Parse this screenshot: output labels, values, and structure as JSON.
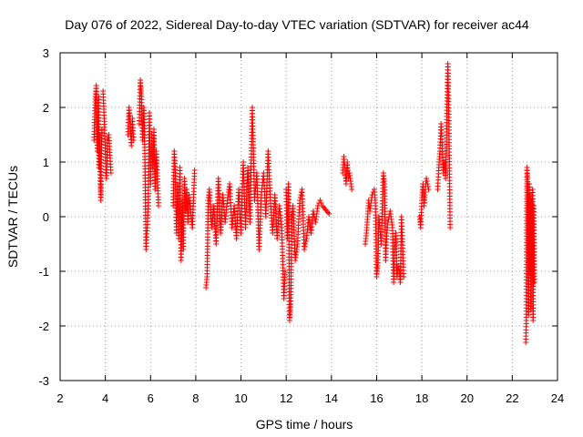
{
  "chart_data": {
    "type": "scatter",
    "title": "Day 076 of 2022, Sidereal Day-to-day VTEC variation (SDTVAR) for receiver ac44",
    "xlabel": "GPS time / hours",
    "ylabel": "SDTVAR / TECUs",
    "xlim": [
      2,
      24
    ],
    "ylim": [
      -3,
      3
    ],
    "xticks": [
      "2",
      "4",
      "6",
      "8",
      "10",
      "12",
      "14",
      "16",
      "18",
      "20",
      "22",
      "24"
    ],
    "yticks": [
      "-3",
      "-2",
      "-1",
      "0",
      "1",
      "2",
      "3"
    ],
    "grid": true,
    "marker": "+",
    "colors": {
      "series": "#ff0000",
      "axes": "#000000",
      "grid": "#a0a0a0"
    },
    "series": [
      {
        "name": "SDTVAR",
        "segments": [
          [
            [
              3.5,
              1.4
            ],
            [
              3.55,
              2.1
            ],
            [
              3.6,
              2.4
            ],
            [
              3.62,
              1.8
            ],
            [
              3.65,
              1.2
            ],
            [
              3.7,
              2.2
            ],
            [
              3.72,
              0.9
            ],
            [
              3.75,
              1.5
            ],
            [
              3.78,
              0.6
            ],
            [
              3.8,
              0.3
            ],
            [
              3.82,
              1.1
            ],
            [
              3.85,
              1.6
            ]
          ],
          [
            [
              3.9,
              2.3
            ],
            [
              3.95,
              1.8
            ],
            [
              4.0,
              1.2
            ],
            [
              4.02,
              0.8
            ],
            [
              4.05,
              0.7
            ],
            [
              4.1,
              1.4
            ],
            [
              4.15,
              1.5
            ],
            [
              4.25,
              0.8
            ]
          ],
          [
            [
              5.0,
              1.5
            ],
            [
              5.05,
              2.0
            ],
            [
              5.1,
              1.7
            ],
            [
              5.15,
              1.3
            ],
            [
              5.2,
              1.8
            ],
            [
              5.25,
              1.4
            ]
          ],
          [
            [
              5.5,
              1.7
            ],
            [
              5.55,
              2.5
            ],
            [
              5.6,
              2.2
            ],
            [
              5.65,
              1.4
            ],
            [
              5.7,
              2.0
            ],
            [
              5.75,
              1.1
            ],
            [
              5.8,
              -0.6
            ],
            [
              5.85,
              -0.2
            ],
            [
              5.9,
              0.2
            ],
            [
              5.95,
              1.9
            ],
            [
              6.0,
              0.6
            ],
            [
              6.05,
              1.5
            ],
            [
              6.1,
              0.9
            ],
            [
              6.15,
              1.6
            ],
            [
              6.2,
              0.5
            ],
            [
              6.25,
              1.2
            ],
            [
              6.3,
              0.8
            ],
            [
              6.35,
              0.2
            ]
          ],
          [
            [
              7.0,
              0.2
            ],
            [
              7.05,
              1.2
            ],
            [
              7.1,
              0.8
            ],
            [
              7.15,
              -0.3
            ],
            [
              7.2,
              0.6
            ],
            [
              7.25,
              -0.4
            ],
            [
              7.3,
              0.9
            ],
            [
              7.35,
              -0.8
            ],
            [
              7.4,
              0.3
            ],
            [
              7.45,
              -0.6
            ],
            [
              7.5,
              0.7
            ],
            [
              7.55,
              0.1
            ],
            [
              7.6,
              0.5
            ],
            [
              7.65,
              -0.1
            ],
            [
              7.7,
              0.4
            ],
            [
              7.75,
              0.2
            ],
            [
              7.85,
              -0.2
            ],
            [
              7.95,
              0.85
            ]
          ],
          [
            [
              8.45,
              -1.3
            ],
            [
              8.5,
              -1.1
            ],
            [
              8.55,
              0.3
            ],
            [
              8.6,
              0.5
            ],
            [
              8.7,
              -0.2
            ],
            [
              8.8,
              0.2
            ],
            [
              8.9,
              -0.5
            ],
            [
              9.0,
              0.7
            ],
            [
              9.1,
              -0.3
            ],
            [
              9.2,
              0.4
            ],
            [
              9.3,
              -0.1
            ],
            [
              9.4,
              0.3
            ],
            [
              9.5,
              0.6
            ],
            [
              9.6,
              -0.2
            ],
            [
              9.7,
              0.2
            ],
            [
              9.8,
              -0.4
            ],
            [
              9.9,
              0.5
            ],
            [
              10.0,
              -0.3
            ],
            [
              10.1,
              1.0
            ],
            [
              10.2,
              -0.2
            ],
            [
              10.3,
              0.9
            ],
            [
              10.4,
              -0.1
            ],
            [
              10.5,
              2.0
            ],
            [
              10.55,
              1.2
            ],
            [
              10.6,
              0.3
            ],
            [
              10.7,
              0.8
            ],
            [
              10.8,
              -0.6
            ],
            [
              10.9,
              0.4
            ],
            [
              11.0,
              0.8
            ],
            [
              11.1,
              0.0
            ],
            [
              11.2,
              1.2
            ],
            [
              11.3,
              0.3
            ],
            [
              11.4,
              -0.3
            ],
            [
              11.5,
              0.4
            ],
            [
              11.6,
              -0.4
            ],
            [
              11.7,
              0.2
            ],
            [
              11.8,
              -0.2
            ],
            [
              11.9,
              -1.5
            ],
            [
              11.95,
              -1.0
            ]
          ],
          [
            [
              12.0,
              0.5
            ],
            [
              12.05,
              -0.4
            ],
            [
              12.1,
              0.6
            ],
            [
              12.15,
              -1.9
            ],
            [
              12.2,
              -1.6
            ],
            [
              12.25,
              0.0
            ],
            [
              12.3,
              0.2
            ],
            [
              12.4,
              -0.8
            ],
            [
              12.5,
              -0.5
            ],
            [
              12.6,
              0.3
            ],
            [
              12.7,
              0.5
            ],
            [
              12.8,
              -0.6
            ],
            [
              12.9,
              -0.4
            ],
            [
              13.0,
              0.0
            ],
            [
              13.1,
              -0.3
            ],
            [
              13.2,
              0.1
            ],
            [
              13.3,
              -0.1
            ],
            [
              13.4,
              0.2
            ],
            [
              13.5,
              0.3
            ],
            [
              13.6,
              0.2
            ],
            [
              13.7,
              0.15
            ],
            [
              13.8,
              0.1
            ],
            [
              13.9,
              0.05
            ]
          ],
          [
            [
              14.5,
              0.8
            ],
            [
              14.55,
              1.1
            ],
            [
              14.6,
              0.9
            ],
            [
              14.65,
              0.6
            ],
            [
              14.7,
              1.0
            ],
            [
              14.75,
              0.7
            ],
            [
              14.8,
              0.8
            ],
            [
              14.9,
              0.5
            ]
          ],
          [
            [
              15.5,
              -0.5
            ],
            [
              15.55,
              -0.3
            ],
            [
              15.6,
              0.0
            ],
            [
              15.65,
              0.3
            ],
            [
              15.7,
              0.1
            ],
            [
              15.8,
              0.4
            ],
            [
              15.9,
              0.5
            ],
            [
              15.95,
              0.2
            ],
            [
              16.0,
              -1.1
            ],
            [
              16.05,
              -0.9
            ],
            [
              16.1,
              0.0
            ],
            [
              16.2,
              -0.5
            ],
            [
              16.3,
              0.8
            ],
            [
              16.35,
              0.6
            ],
            [
              16.4,
              -0.8
            ],
            [
              16.45,
              -0.3
            ],
            [
              16.5,
              -0.1
            ],
            [
              16.6,
              0.1
            ],
            [
              16.7,
              -0.2
            ],
            [
              16.75,
              -1.2
            ],
            [
              16.8,
              -0.6
            ],
            [
              16.85,
              -0.3
            ],
            [
              16.9,
              -1.1
            ],
            [
              16.95,
              -0.9
            ],
            [
              17.0,
              -1.0
            ],
            [
              17.05,
              -1.2
            ],
            [
              17.1,
              0.0
            ],
            [
              17.2,
              -1.1
            ]
          ],
          [
            [
              17.9,
              0.0
            ],
            [
              17.95,
              -0.2
            ],
            [
              18.0,
              0.3
            ],
            [
              18.05,
              0.6
            ],
            [
              18.1,
              0.2
            ],
            [
              18.15,
              0.5
            ],
            [
              18.2,
              0.7
            ],
            [
              18.25,
              0.6
            ],
            [
              18.3,
              0.5
            ]
          ],
          [
            [
              18.7,
              0.5
            ],
            [
              18.75,
              0.9
            ],
            [
              18.8,
              1.2
            ],
            [
              18.85,
              1.7
            ],
            [
              18.9,
              1.3
            ],
            [
              18.95,
              0.8
            ],
            [
              19.0,
              1.0
            ],
            [
              19.05,
              0.7
            ],
            [
              19.15,
              2.8
            ],
            [
              19.2,
              1.7
            ],
            [
              19.25,
              -0.2
            ]
          ],
          [
            [
              22.6,
              -2.3
            ],
            [
              22.62,
              -1.9
            ],
            [
              22.65,
              0.9
            ],
            [
              22.68,
              0.7
            ],
            [
              22.7,
              -0.9
            ],
            [
              22.72,
              -1.8
            ],
            [
              22.75,
              0.6
            ],
            [
              22.78,
              -1.0
            ],
            [
              22.8,
              0.4
            ],
            [
              22.82,
              -1.7
            ],
            [
              22.85,
              0.3
            ],
            [
              22.88,
              -1.1
            ],
            [
              22.9,
              0.5
            ],
            [
              22.92,
              -1.9
            ],
            [
              22.95,
              0.2
            ],
            [
              22.98,
              -1.2
            ]
          ]
        ]
      }
    ]
  }
}
